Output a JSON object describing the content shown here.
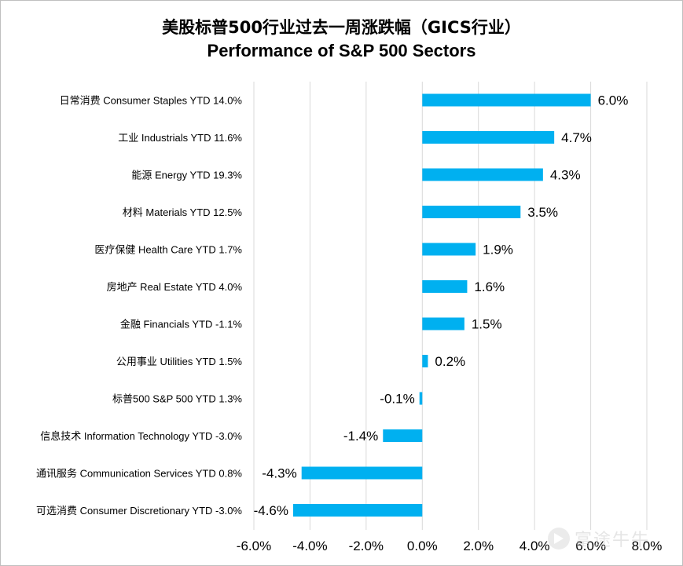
{
  "titles": {
    "zh": "美股标普500行业过去一周涨跌幅（GICS行业）",
    "en": "Performance of S&P 500 Sectors"
  },
  "watermark": {
    "text": "富途牛牛",
    "icon": "futu-logo-icon"
  },
  "chart_data": {
    "type": "bar",
    "orientation": "horizontal",
    "title": "美股标普500行业过去一周涨跌幅（GICS行业） Performance of S&P 500 Sectors",
    "categories": [
      "日常消费 Consumer Staples YTD 14.0%",
      "工业 Industrials YTD 11.6%",
      "能源 Energy YTD 19.3%",
      "材料 Materials YTD 12.5%",
      "医疗保健 Health Care YTD 1.7%",
      "房地产 Real Estate YTD 4.0%",
      "金融 Financials YTD -1.1%",
      "公用事业 Utilities YTD 1.5%",
      "标普500 S&P 500 YTD 1.3%",
      "信息技术 Information Technology YTD -3.0%",
      "通讯服务 Communication Services YTD 0.8%",
      "可选消费 Consumer Discretionary YTD -3.0%"
    ],
    "values": [
      6.0,
      4.7,
      4.3,
      3.5,
      1.9,
      1.6,
      1.5,
      0.2,
      -0.1,
      -1.4,
      -4.3,
      -4.6
    ],
    "value_labels": [
      "6.0%",
      "4.7%",
      "4.3%",
      "3.5%",
      "1.9%",
      "1.6%",
      "1.5%",
      "0.2%",
      "-0.1%",
      "-1.4%",
      "-4.3%",
      "-4.6%"
    ],
    "x_ticks": [
      "-6.0%",
      "-4.0%",
      "-2.0%",
      "0.0%",
      "2.0%",
      "4.0%",
      "6.0%",
      "8.0%"
    ],
    "tick_values": [
      -6,
      -4,
      -2,
      0,
      2,
      4,
      6,
      8
    ],
    "xlim": [
      -6,
      8
    ],
    "grid": true,
    "bar_color": "#00b0f0",
    "grid_color": "#d9d9d9"
  }
}
